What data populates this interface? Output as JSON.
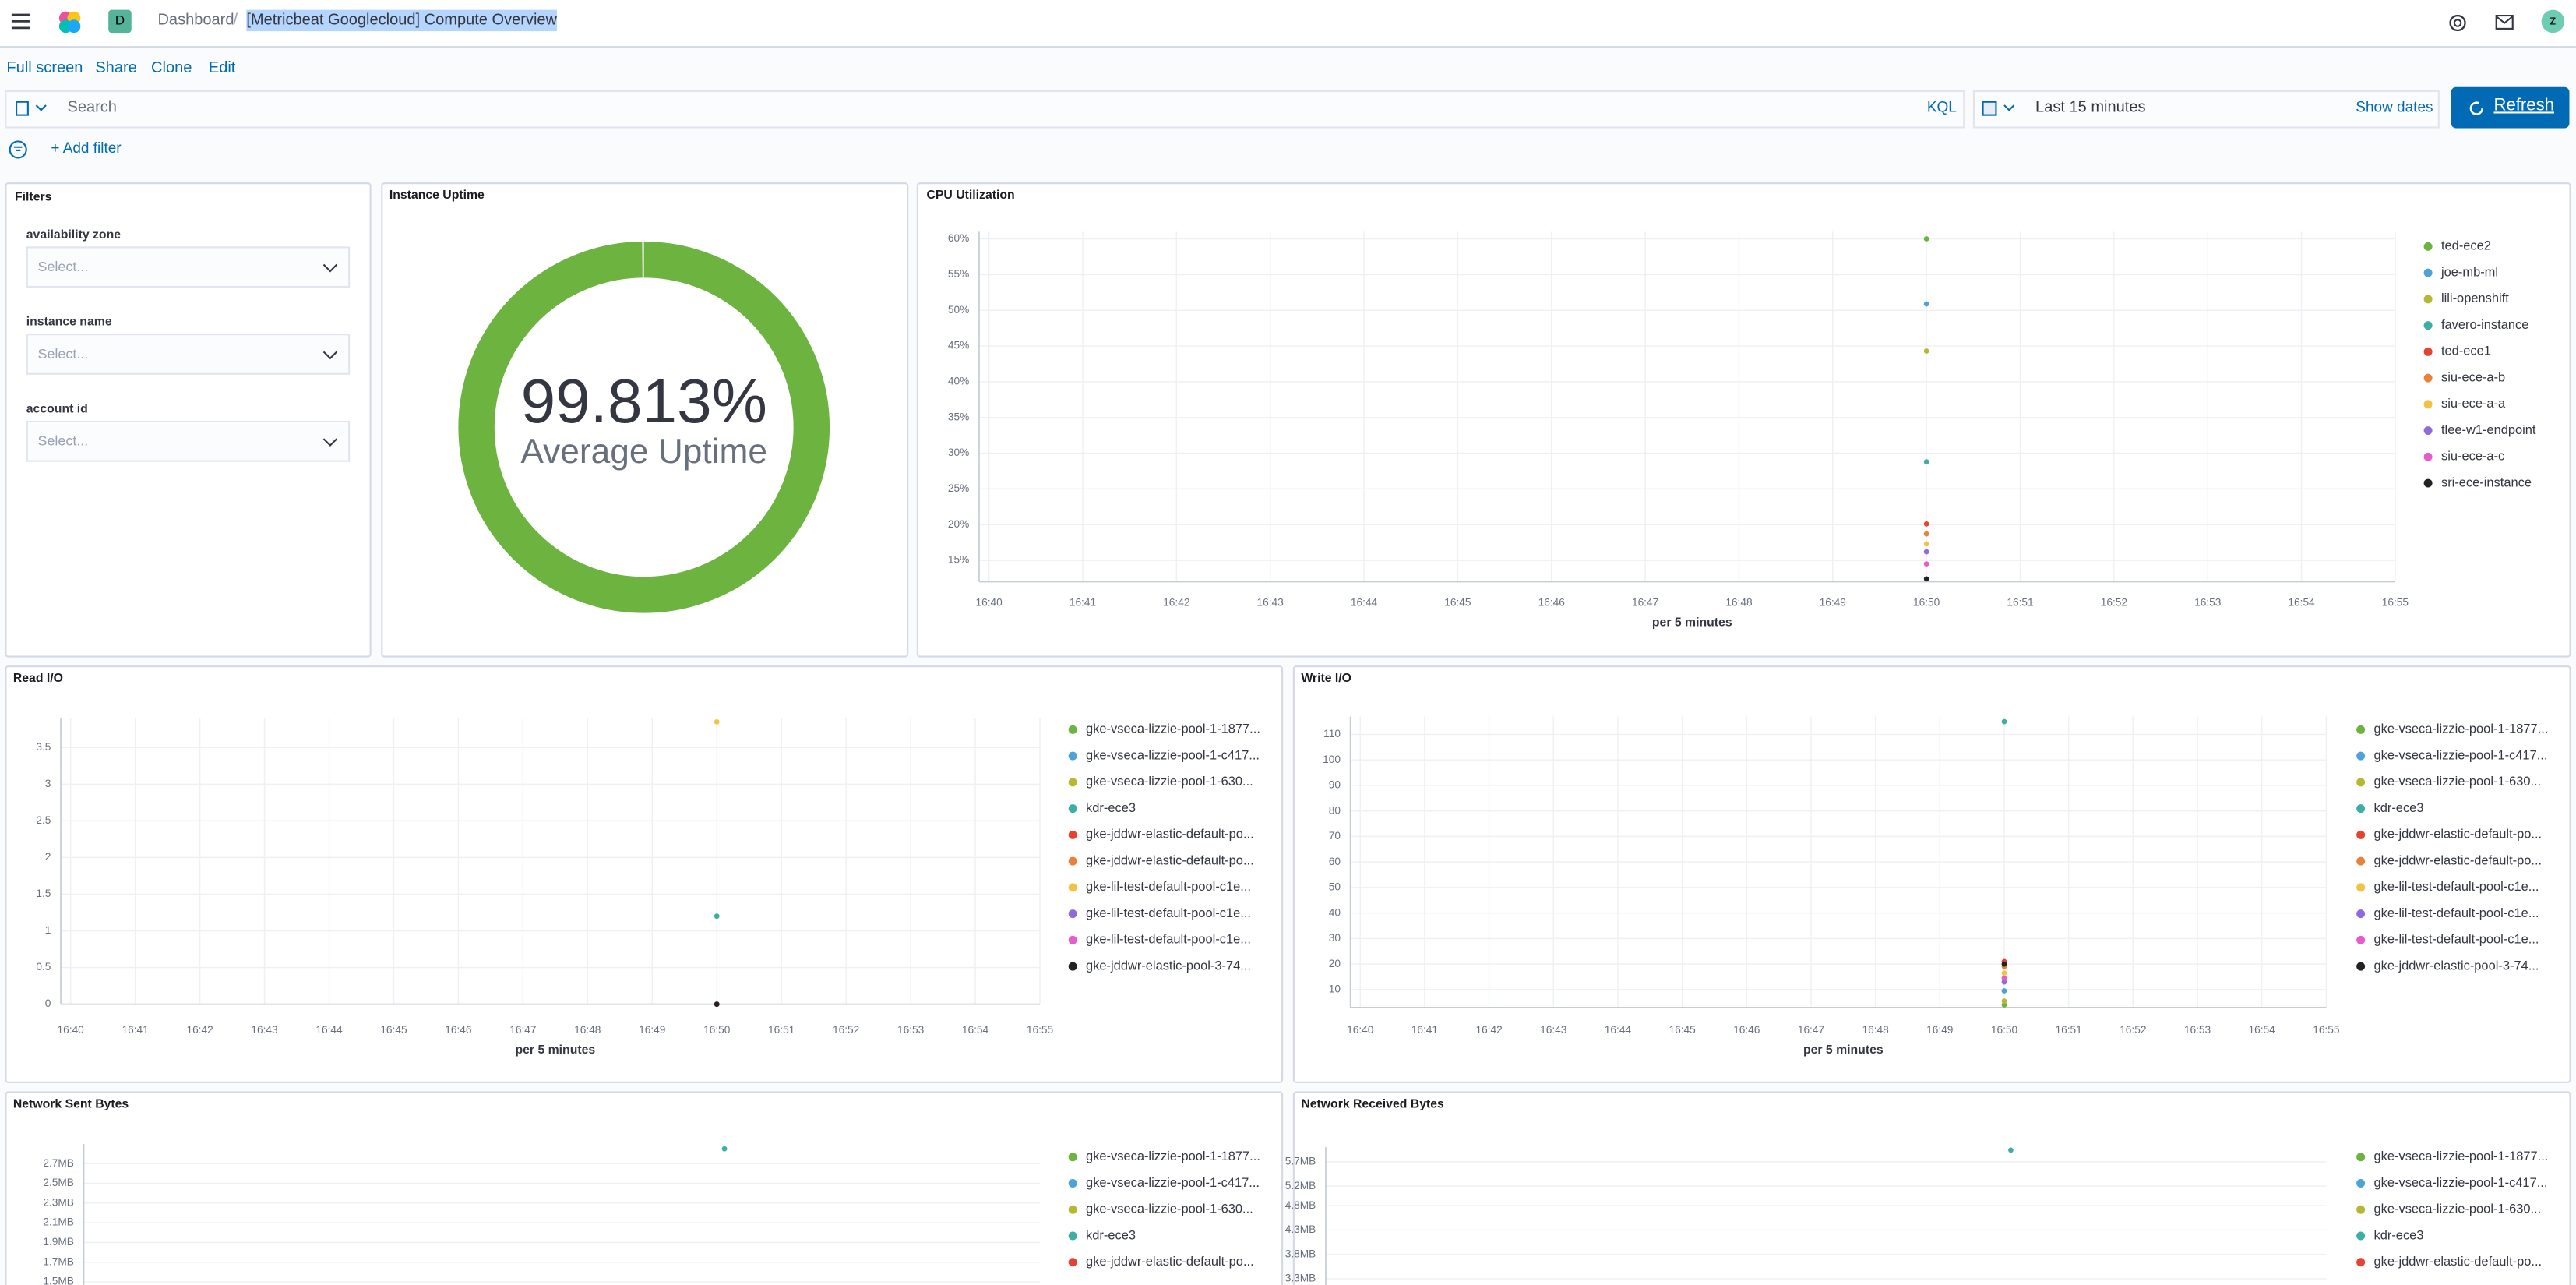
{
  "header": {
    "avatar": "D",
    "breadcrumbs": [
      "Dashboard",
      "[Metricbeat Googlecloud] Compute Overview"
    ],
    "user": "z"
  },
  "menu": [
    "Full screen",
    "Share",
    "Clone",
    "Edit"
  ],
  "query_bar": {
    "search": "Search",
    "language": "KQL",
    "time": "Last 15 minutes",
    "show_dates": "Show dates",
    "refresh": "Refresh",
    "add_filter": "+ Add filter"
  },
  "filters_panel": {
    "title": "Filters",
    "controls": [
      {
        "label": "availability zone",
        "placeholder": "Select..."
      },
      {
        "label": "instance name",
        "placeholder": "Select..."
      },
      {
        "label": "account id",
        "placeholder": "Select..."
      }
    ]
  },
  "chart_data": [
    {
      "type": "gauge",
      "title": "Instance Uptime",
      "value": 99.813,
      "value_label": "99.813%",
      "label": "Average Uptime",
      "color": "#6db33f",
      "ylim": [
        0,
        100
      ]
    },
    {
      "type": "line",
      "title": "CPU Utilization",
      "x_label": "per 5 minutes",
      "grid": true,
      "categories": [
        "16:40",
        "16:41",
        "16:42",
        "16:43",
        "16:44",
        "16:45",
        "16:46",
        "16:47",
        "16:48",
        "16:49",
        "16:50",
        "16:51",
        "16:52",
        "16:53",
        "16:54",
        "16:55"
      ],
      "ylim": [
        12,
        61
      ],
      "yticks": [
        {
          "value": 15,
          "label": "15%"
        },
        {
          "value": 20,
          "label": "20%"
        },
        {
          "value": 25,
          "label": "25%"
        },
        {
          "value": 30,
          "label": "30%"
        },
        {
          "value": 35,
          "label": "35%"
        },
        {
          "value": 40,
          "label": "40%"
        },
        {
          "value": 45,
          "label": "45%"
        },
        {
          "value": 50,
          "label": "50%"
        },
        {
          "value": 55,
          "label": "55%"
        },
        {
          "value": 60,
          "label": "60%"
        }
      ],
      "series": [
        {
          "name": "ted-ece2",
          "color": "#6db33f",
          "values": [
            null,
            null,
            null,
            null,
            null,
            null,
            null,
            null,
            null,
            null,
            60,
            null,
            null,
            null,
            null,
            null
          ]
        },
        {
          "name": "joe-mb-ml",
          "color": "#4da2d9",
          "values": [
            null,
            null,
            null,
            null,
            null,
            null,
            null,
            null,
            null,
            null,
            50.9,
            null,
            null,
            null,
            null,
            null
          ]
        },
        {
          "name": "lili-openshift",
          "color": "#b5b832",
          "values": [
            null,
            null,
            null,
            null,
            null,
            null,
            null,
            null,
            null,
            null,
            44.3,
            null,
            null,
            null,
            null,
            null
          ]
        },
        {
          "name": "favero-instance",
          "color": "#3caea3",
          "values": [
            null,
            null,
            null,
            null,
            null,
            null,
            null,
            null,
            null,
            null,
            28.8,
            null,
            null,
            null,
            null,
            null
          ]
        },
        {
          "name": "ted-ece1",
          "color": "#e7412f",
          "values": [
            null,
            null,
            null,
            null,
            null,
            null,
            null,
            null,
            null,
            null,
            20.1,
            null,
            null,
            null,
            null,
            null
          ]
        },
        {
          "name": "siu-ece-a-b",
          "color": "#e8813a",
          "values": [
            null,
            null,
            null,
            null,
            null,
            null,
            null,
            null,
            null,
            null,
            18.7,
            null,
            null,
            null,
            null,
            null
          ]
        },
        {
          "name": "siu-ece-a-a",
          "color": "#f4c242",
          "values": [
            null,
            null,
            null,
            null,
            null,
            null,
            null,
            null,
            null,
            null,
            17.3,
            null,
            null,
            null,
            null,
            null
          ]
        },
        {
          "name": "tlee-w1-endpoint",
          "color": "#8e6bdc",
          "values": [
            null,
            null,
            null,
            null,
            null,
            null,
            null,
            null,
            null,
            null,
            16.2,
            null,
            null,
            null,
            null,
            null
          ]
        },
        {
          "name": "siu-ece-a-c",
          "color": "#e65ccb",
          "values": [
            null,
            null,
            null,
            null,
            null,
            null,
            null,
            null,
            null,
            null,
            14.5,
            null,
            null,
            null,
            null,
            null
          ]
        },
        {
          "name": "sri-ece-instance",
          "color": "#222222",
          "values": [
            null,
            null,
            null,
            null,
            null,
            null,
            null,
            null,
            null,
            null,
            12.4,
            null,
            null,
            null,
            null,
            null
          ]
        }
      ]
    },
    {
      "type": "line",
      "title": "Read I/O",
      "x_label": "per 5 minutes",
      "grid": true,
      "categories": [
        "16:40",
        "16:41",
        "16:42",
        "16:43",
        "16:44",
        "16:45",
        "16:46",
        "16:47",
        "16:48",
        "16:49",
        "16:50",
        "16:51",
        "16:52",
        "16:53",
        "16:54",
        "16:55"
      ],
      "ylim": [
        0,
        3.9
      ],
      "yticks": [
        0,
        0.5,
        1,
        1.5,
        2,
        2.5,
        3,
        3.5
      ],
      "series": [
        {
          "name": "gke-vseca-lizzie-pool-1-1877...",
          "color": "#6db33f",
          "values": [
            null,
            null,
            null,
            null,
            null,
            null,
            null,
            null,
            null,
            null,
            0,
            null,
            null,
            null,
            null,
            null
          ]
        },
        {
          "name": "gke-vseca-lizzie-pool-1-c417...",
          "color": "#4da2d9",
          "values": [
            null,
            null,
            null,
            null,
            null,
            null,
            null,
            null,
            null,
            null,
            0,
            null,
            null,
            null,
            null,
            null
          ]
        },
        {
          "name": "gke-vseca-lizzie-pool-1-630...",
          "color": "#b5b832",
          "values": [
            null,
            null,
            null,
            null,
            null,
            null,
            null,
            null,
            null,
            null,
            0,
            null,
            null,
            null,
            null,
            null
          ]
        },
        {
          "name": "kdr-ece3",
          "color": "#3caea3",
          "values": [
            null,
            null,
            null,
            null,
            null,
            null,
            null,
            null,
            null,
            null,
            1.2,
            null,
            null,
            null,
            null,
            null
          ]
        },
        {
          "name": "gke-jddwr-elastic-default-po...",
          "color": "#e7412f",
          "values": [
            null,
            null,
            null,
            null,
            null,
            null,
            null,
            null,
            null,
            null,
            0,
            null,
            null,
            null,
            null,
            null
          ]
        },
        {
          "name": "gke-jddwr-elastic-default-po...",
          "color": "#e8813a",
          "values": [
            null,
            null,
            null,
            null,
            null,
            null,
            null,
            null,
            null,
            null,
            0,
            null,
            null,
            null,
            null,
            null
          ]
        },
        {
          "name": "gke-lil-test-default-pool-c1e...",
          "color": "#f4c242",
          "values": [
            null,
            null,
            null,
            null,
            null,
            null,
            null,
            null,
            null,
            null,
            3.85,
            null,
            null,
            null,
            null,
            null
          ]
        },
        {
          "name": "gke-lil-test-default-pool-c1e...",
          "color": "#8e6bdc",
          "values": [
            null,
            null,
            null,
            null,
            null,
            null,
            null,
            null,
            null,
            null,
            0,
            null,
            null,
            null,
            null,
            null
          ]
        },
        {
          "name": "gke-lil-test-default-pool-c1e...",
          "color": "#e65ccb",
          "values": [
            null,
            null,
            null,
            null,
            null,
            null,
            null,
            null,
            null,
            null,
            0,
            null,
            null,
            null,
            null,
            null
          ]
        },
        {
          "name": "gke-jddwr-elastic-pool-3-74...",
          "color": "#222222",
          "values": [
            null,
            null,
            null,
            null,
            null,
            null,
            null,
            null,
            null,
            null,
            0,
            null,
            null,
            null,
            null,
            null
          ]
        }
      ]
    },
    {
      "type": "line",
      "title": "Write I/O",
      "x_label": "per 5 minutes",
      "grid": true,
      "categories": [
        "16:40",
        "16:41",
        "16:42",
        "16:43",
        "16:44",
        "16:45",
        "16:46",
        "16:47",
        "16:48",
        "16:49",
        "16:50",
        "16:51",
        "16:52",
        "16:53",
        "16:54",
        "16:55"
      ],
      "ylim": [
        3,
        117
      ],
      "yticks": [
        10,
        20,
        30,
        40,
        50,
        60,
        70,
        80,
        90,
        100,
        110
      ],
      "series": [
        {
          "name": "gke-vseca-lizzie-pool-1-1877...",
          "color": "#6db33f",
          "values": [
            null,
            null,
            null,
            null,
            null,
            null,
            null,
            null,
            null,
            null,
            4,
            null,
            null,
            null,
            null,
            null
          ]
        },
        {
          "name": "gke-vseca-lizzie-pool-1-c417...",
          "color": "#4da2d9",
          "values": [
            null,
            null,
            null,
            null,
            null,
            null,
            null,
            null,
            null,
            null,
            9.5,
            null,
            null,
            null,
            null,
            null
          ]
        },
        {
          "name": "gke-vseca-lizzie-pool-1-630...",
          "color": "#b5b832",
          "values": [
            null,
            null,
            null,
            null,
            null,
            null,
            null,
            null,
            null,
            null,
            5.5,
            null,
            null,
            null,
            null,
            null
          ]
        },
        {
          "name": "kdr-ece3",
          "color": "#3caea3",
          "values": [
            null,
            null,
            null,
            null,
            null,
            null,
            null,
            null,
            null,
            null,
            115,
            null,
            null,
            null,
            null,
            null
          ]
        },
        {
          "name": "gke-jddwr-elastic-default-po...",
          "color": "#e7412f",
          "values": [
            null,
            null,
            null,
            null,
            null,
            null,
            null,
            null,
            null,
            null,
            21,
            null,
            null,
            null,
            null,
            null
          ]
        },
        {
          "name": "gke-jddwr-elastic-default-po...",
          "color": "#e8813a",
          "values": [
            null,
            null,
            null,
            null,
            null,
            null,
            null,
            null,
            null,
            null,
            19,
            null,
            null,
            null,
            null,
            null
          ]
        },
        {
          "name": "gke-lil-test-default-pool-c1e...",
          "color": "#f4c242",
          "values": [
            null,
            null,
            null,
            null,
            null,
            null,
            null,
            null,
            null,
            null,
            16.5,
            null,
            null,
            null,
            null,
            null
          ]
        },
        {
          "name": "gke-lil-test-default-pool-c1e...",
          "color": "#8e6bdc",
          "values": [
            null,
            null,
            null,
            null,
            null,
            null,
            null,
            null,
            null,
            null,
            13,
            null,
            null,
            null,
            null,
            null
          ]
        },
        {
          "name": "gke-lil-test-default-pool-c1e...",
          "color": "#e65ccb",
          "values": [
            null,
            null,
            null,
            null,
            null,
            null,
            null,
            null,
            null,
            null,
            14.5,
            null,
            null,
            null,
            null,
            null
          ]
        },
        {
          "name": "gke-jddwr-elastic-pool-3-74...",
          "color": "#222222",
          "values": [
            null,
            null,
            null,
            null,
            null,
            null,
            null,
            null,
            null,
            null,
            20,
            null,
            null,
            null,
            null,
            null
          ]
        }
      ]
    },
    {
      "type": "line",
      "title": "Network Sent Bytes",
      "grid": true,
      "ylim": [
        1.3,
        2.9
      ],
      "yticks": [
        {
          "value": 1.5,
          "label": "1.5MB"
        },
        {
          "value": 1.7,
          "label": "1.7MB"
        },
        {
          "value": 1.9,
          "label": "1.9MB"
        },
        {
          "value": 2.1,
          "label": "2.1MB"
        },
        {
          "value": 2.3,
          "label": "2.3MB"
        },
        {
          "value": 2.5,
          "label": "2.5MB"
        },
        {
          "value": 2.7,
          "label": "2.7MB"
        }
      ],
      "series": [
        {
          "name": "gke-vseca-lizzie-pool-1-1877...",
          "color": "#6db33f",
          "values": [
            null
          ]
        },
        {
          "name": "gke-vseca-lizzie-pool-1-c417...",
          "color": "#4da2d9",
          "values": [
            null
          ]
        },
        {
          "name": "gke-vseca-lizzie-pool-1-630...",
          "color": "#b5b832",
          "values": [
            null
          ]
        },
        {
          "name": "kdr-ece3",
          "color": "#3caea3",
          "values": [
            2.85
          ]
        },
        {
          "name": "gke-jddwr-elastic-default-po...",
          "color": "#e7412f",
          "values": [
            null
          ]
        }
      ]
    },
    {
      "type": "line",
      "title": "Network Received Bytes",
      "grid": true,
      "ylim": [
        3.0,
        6.0
      ],
      "yticks": [
        {
          "value": 3.3,
          "label": "3.3MB"
        },
        {
          "value": 3.8,
          "label": "3.8MB"
        },
        {
          "value": 4.3,
          "label": "4.3MB"
        },
        {
          "value": 4.8,
          "label": "4.8MB"
        },
        {
          "value": 5.2,
          "label": "5.2MB"
        },
        {
          "value": 5.7,
          "label": "5.7MB"
        }
      ],
      "series": [
        {
          "name": "gke-vseca-lizzie-pool-1-1877...",
          "color": "#6db33f",
          "values": [
            null
          ]
        },
        {
          "name": "gke-vseca-lizzie-pool-1-c417...",
          "color": "#4da2d9",
          "values": [
            null
          ]
        },
        {
          "name": "gke-vseca-lizzie-pool-1-630...",
          "color": "#b5b832",
          "values": [
            null
          ]
        },
        {
          "name": "kdr-ece3",
          "color": "#3caea3",
          "values": [
            5.94
          ]
        },
        {
          "name": "gke-jddwr-elastic-default-po...",
          "color": "#e7412f",
          "values": [
            null
          ]
        }
      ]
    }
  ]
}
